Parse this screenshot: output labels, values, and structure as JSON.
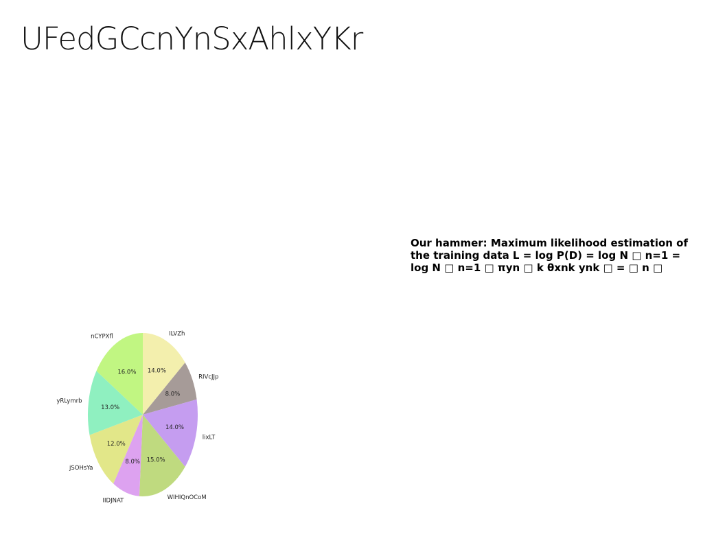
{
  "slide": {
    "title": "UFedGCcnYnSxAhlxYKr",
    "body_text": "Our hammer: Maximum likelihood estimation of the training data L = log P(D) = log N □ n=1 = log N □ n=1 □ πyn □ k θxnk ynk □ = □ n □"
  },
  "chart_data": {
    "type": "pie",
    "start_angle_deg": 90,
    "direction": "clockwise",
    "slices": [
      {
        "label": "ILVZh",
        "pct_label": "14.0%",
        "value": 14.0,
        "color": "#f3efad"
      },
      {
        "label": "RIVcJJp",
        "pct_label": "8.0%",
        "value": 8.0,
        "color": "#a69b98"
      },
      {
        "label": "lixLT",
        "pct_label": "14.0%",
        "value": 14.0,
        "color": "#c59df0"
      },
      {
        "label": "WIHIQnOCoM",
        "pct_label": "15.0%",
        "value": 15.0,
        "color": "#bfda7f"
      },
      {
        "label": "IIDJNAT",
        "pct_label": "8.0%",
        "value": 8.0,
        "color": "#dda2f0"
      },
      {
        "label": "jSOHsYa",
        "pct_label": "12.0%",
        "value": 12.0,
        "color": "#e2e789"
      },
      {
        "label": "yRLymrb",
        "pct_label": "13.0%",
        "value": 13.0,
        "color": "#8ff0c0"
      },
      {
        "label": "nCYPXfl",
        "pct_label": "16.0%",
        "value": 16.0,
        "color": "#c1f682"
      }
    ]
  }
}
